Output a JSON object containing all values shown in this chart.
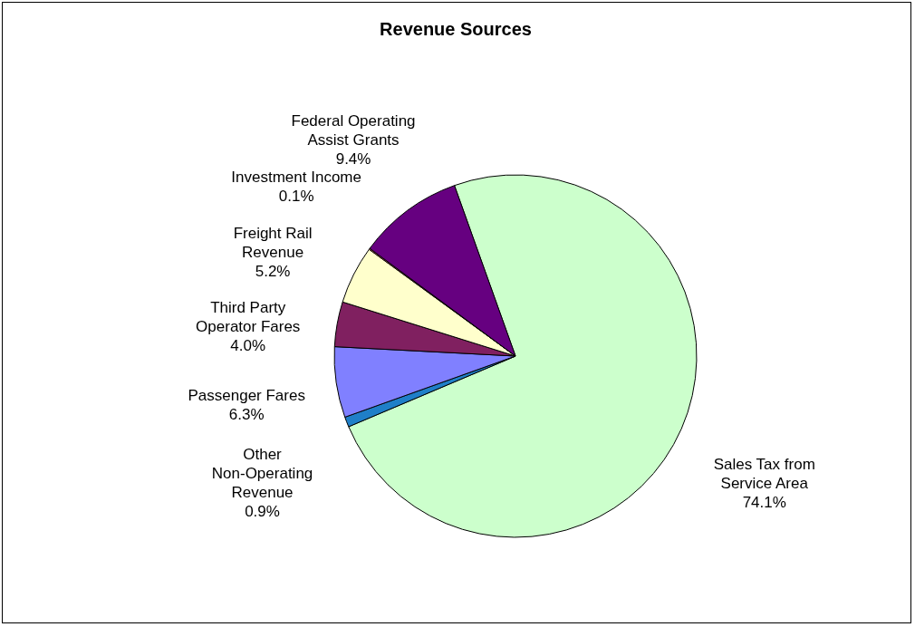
{
  "chart_data": {
    "type": "pie",
    "title": "Revenue Sources",
    "categories": [
      "Sales Tax from Service Area",
      "Other Non-Operating Revenue",
      "Passenger Fares",
      "Third Party Operator Fares",
      "Freight Rail Revenue",
      "Investment Income",
      "Federal Operating Assist Grants"
    ],
    "values": [
      74.1,
      0.9,
      6.3,
      4.0,
      5.2,
      0.1,
      9.4
    ],
    "value_labels": [
      "74.1%",
      "0.9%",
      "6.3%",
      "4.0%",
      "5.2%",
      "0.1%",
      "9.4%"
    ],
    "colors": [
      "#ccffcc",
      "#1f7fc8",
      "#8080ff",
      "#802060",
      "#ffffcc",
      "#ff8080",
      "#660080"
    ],
    "legend": false
  }
}
